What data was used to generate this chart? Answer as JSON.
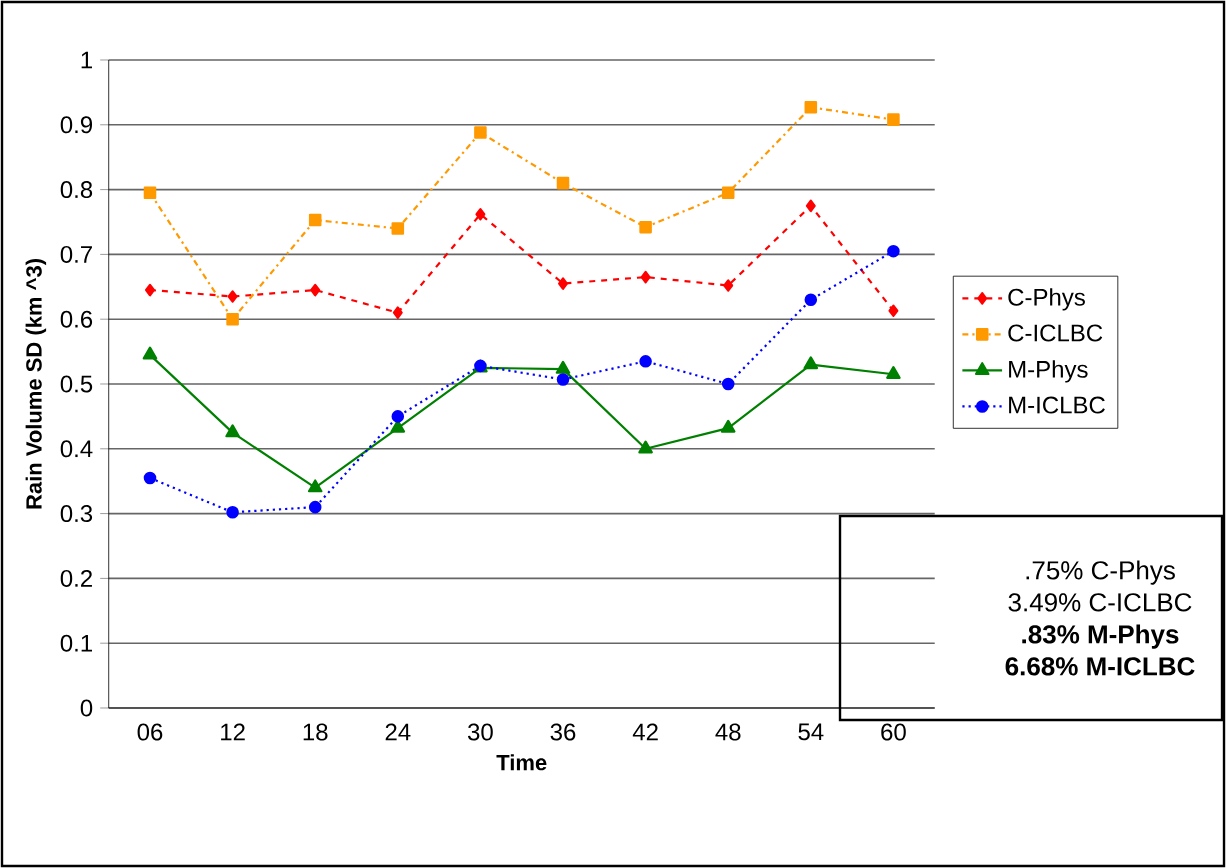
{
  "chart_data": {
    "type": "line",
    "xlabel": "Time",
    "ylabel": "Rain Volume SD (km ^3)",
    "categories": [
      "06",
      "12",
      "18",
      "24",
      "30",
      "36",
      "42",
      "48",
      "54",
      "60"
    ],
    "series": [
      {
        "name": "C-Phys",
        "color": "#ff0000",
        "marker": "diamond",
        "line_style": "dashed",
        "values": [
          0.645,
          0.635,
          0.645,
          0.61,
          0.762,
          0.655,
          0.665,
          0.652,
          0.775,
          0.613
        ]
      },
      {
        "name": "C-ICLBC",
        "color": "#ff9900",
        "marker": "square",
        "line_style": "dashdot",
        "values": [
          0.795,
          0.6,
          0.753,
          0.74,
          0.888,
          0.81,
          0.742,
          0.795,
          0.927,
          0.908
        ]
      },
      {
        "name": "M-Phys",
        "color": "#008000",
        "marker": "triangle",
        "line_style": "solid",
        "values": [
          0.545,
          0.425,
          0.34,
          0.432,
          0.525,
          0.523,
          0.4,
          0.432,
          0.53,
          0.515
        ]
      },
      {
        "name": "M-ICLBC",
        "color": "#0000ff",
        "marker": "circle",
        "line_style": "dotted",
        "values": [
          0.355,
          0.302,
          0.31,
          0.45,
          0.528,
          0.507,
          0.535,
          0.5,
          0.63,
          0.705
        ]
      }
    ],
    "ylim": [
      0,
      1
    ],
    "yticks": [
      0,
      0.1,
      0.2,
      0.3,
      0.4,
      0.5,
      0.6,
      0.7,
      0.8,
      0.9,
      1
    ],
    "grid": "y",
    "legend": "right",
    "annotations": [
      ".75% C-Phys",
      "3.49% C-ICLBC",
      "**.83% M-Phys**",
      "**6.68% M-ICLBC**"
    ]
  }
}
